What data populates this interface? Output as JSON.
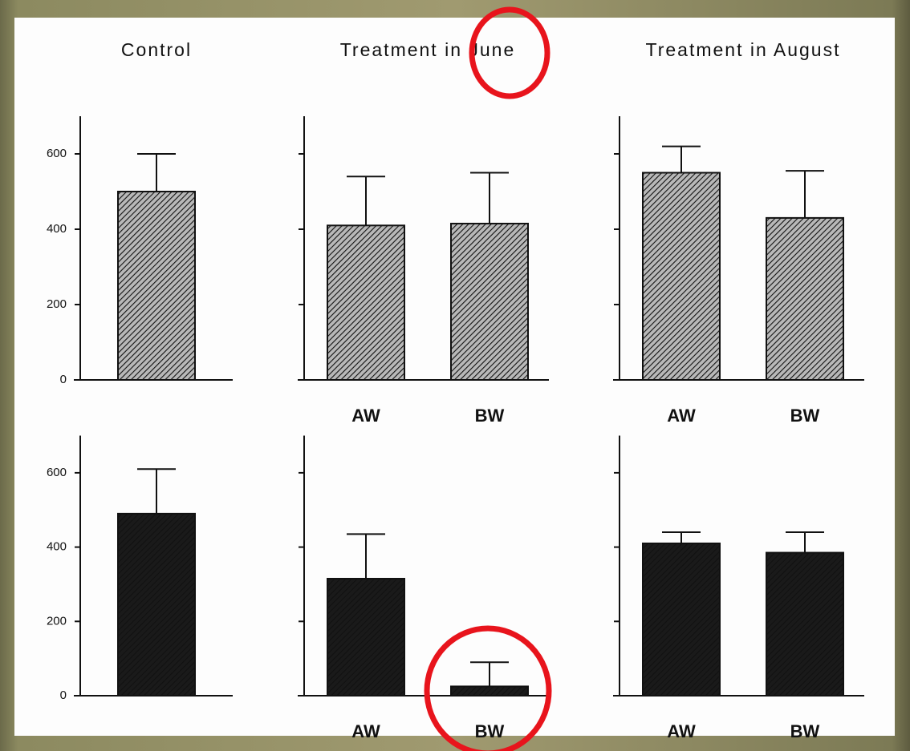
{
  "chart_data": [
    {
      "type": "bar",
      "title": "Control",
      "categories": [
        null
      ],
      "series": [
        {
          "color": "#b8b8b8",
          "values": [
            500
          ],
          "errors": [
            100
          ]
        }
      ],
      "ylim": [
        0,
        700
      ],
      "yticks": [
        0,
        200,
        400,
        600
      ],
      "show_ytick_labels": true
    },
    {
      "type": "bar",
      "title": "Treatment in June",
      "categories": [
        "AW",
        "BW"
      ],
      "series": [
        {
          "color": "#b8b8b8",
          "values": [
            410,
            415
          ],
          "errors": [
            130,
            135
          ]
        }
      ],
      "ylim": [
        0,
        700
      ],
      "yticks": [
        0,
        200,
        400,
        600
      ],
      "show_ytick_labels": false
    },
    {
      "type": "bar",
      "title": "Treatment in August",
      "categories": [
        "AW",
        "BW"
      ],
      "series": [
        {
          "color": "#b8b8b8",
          "values": [
            550,
            430
          ],
          "errors": [
            70,
            125
          ]
        }
      ],
      "ylim": [
        0,
        700
      ],
      "yticks": [
        0,
        200,
        400,
        600
      ],
      "show_ytick_labels": false
    },
    {
      "type": "bar",
      "categories": [
        null
      ],
      "series": [
        {
          "color": "#1a1a1a",
          "values": [
            490
          ],
          "errors": [
            120
          ]
        }
      ],
      "ylim": [
        0,
        700
      ],
      "yticks": [
        0,
        200,
        400,
        600
      ],
      "show_ytick_labels": true
    },
    {
      "type": "bar",
      "categories": [
        "AW",
        "BW"
      ],
      "series": [
        {
          "color": "#1a1a1a",
          "values": [
            315,
            25
          ],
          "errors": [
            120,
            65
          ]
        }
      ],
      "ylim": [
        0,
        700
      ],
      "yticks": [
        0,
        200,
        400,
        600
      ],
      "show_ytick_labels": false
    },
    {
      "type": "bar",
      "categories": [
        "AW",
        "BW"
      ],
      "series": [
        {
          "color": "#1a1a1a",
          "values": [
            410,
            385
          ],
          "errors": [
            30,
            55
          ]
        }
      ],
      "ylim": [
        0,
        700
      ],
      "yticks": [
        0,
        200,
        400,
        600
      ],
      "show_ytick_labels": false
    }
  ]
}
